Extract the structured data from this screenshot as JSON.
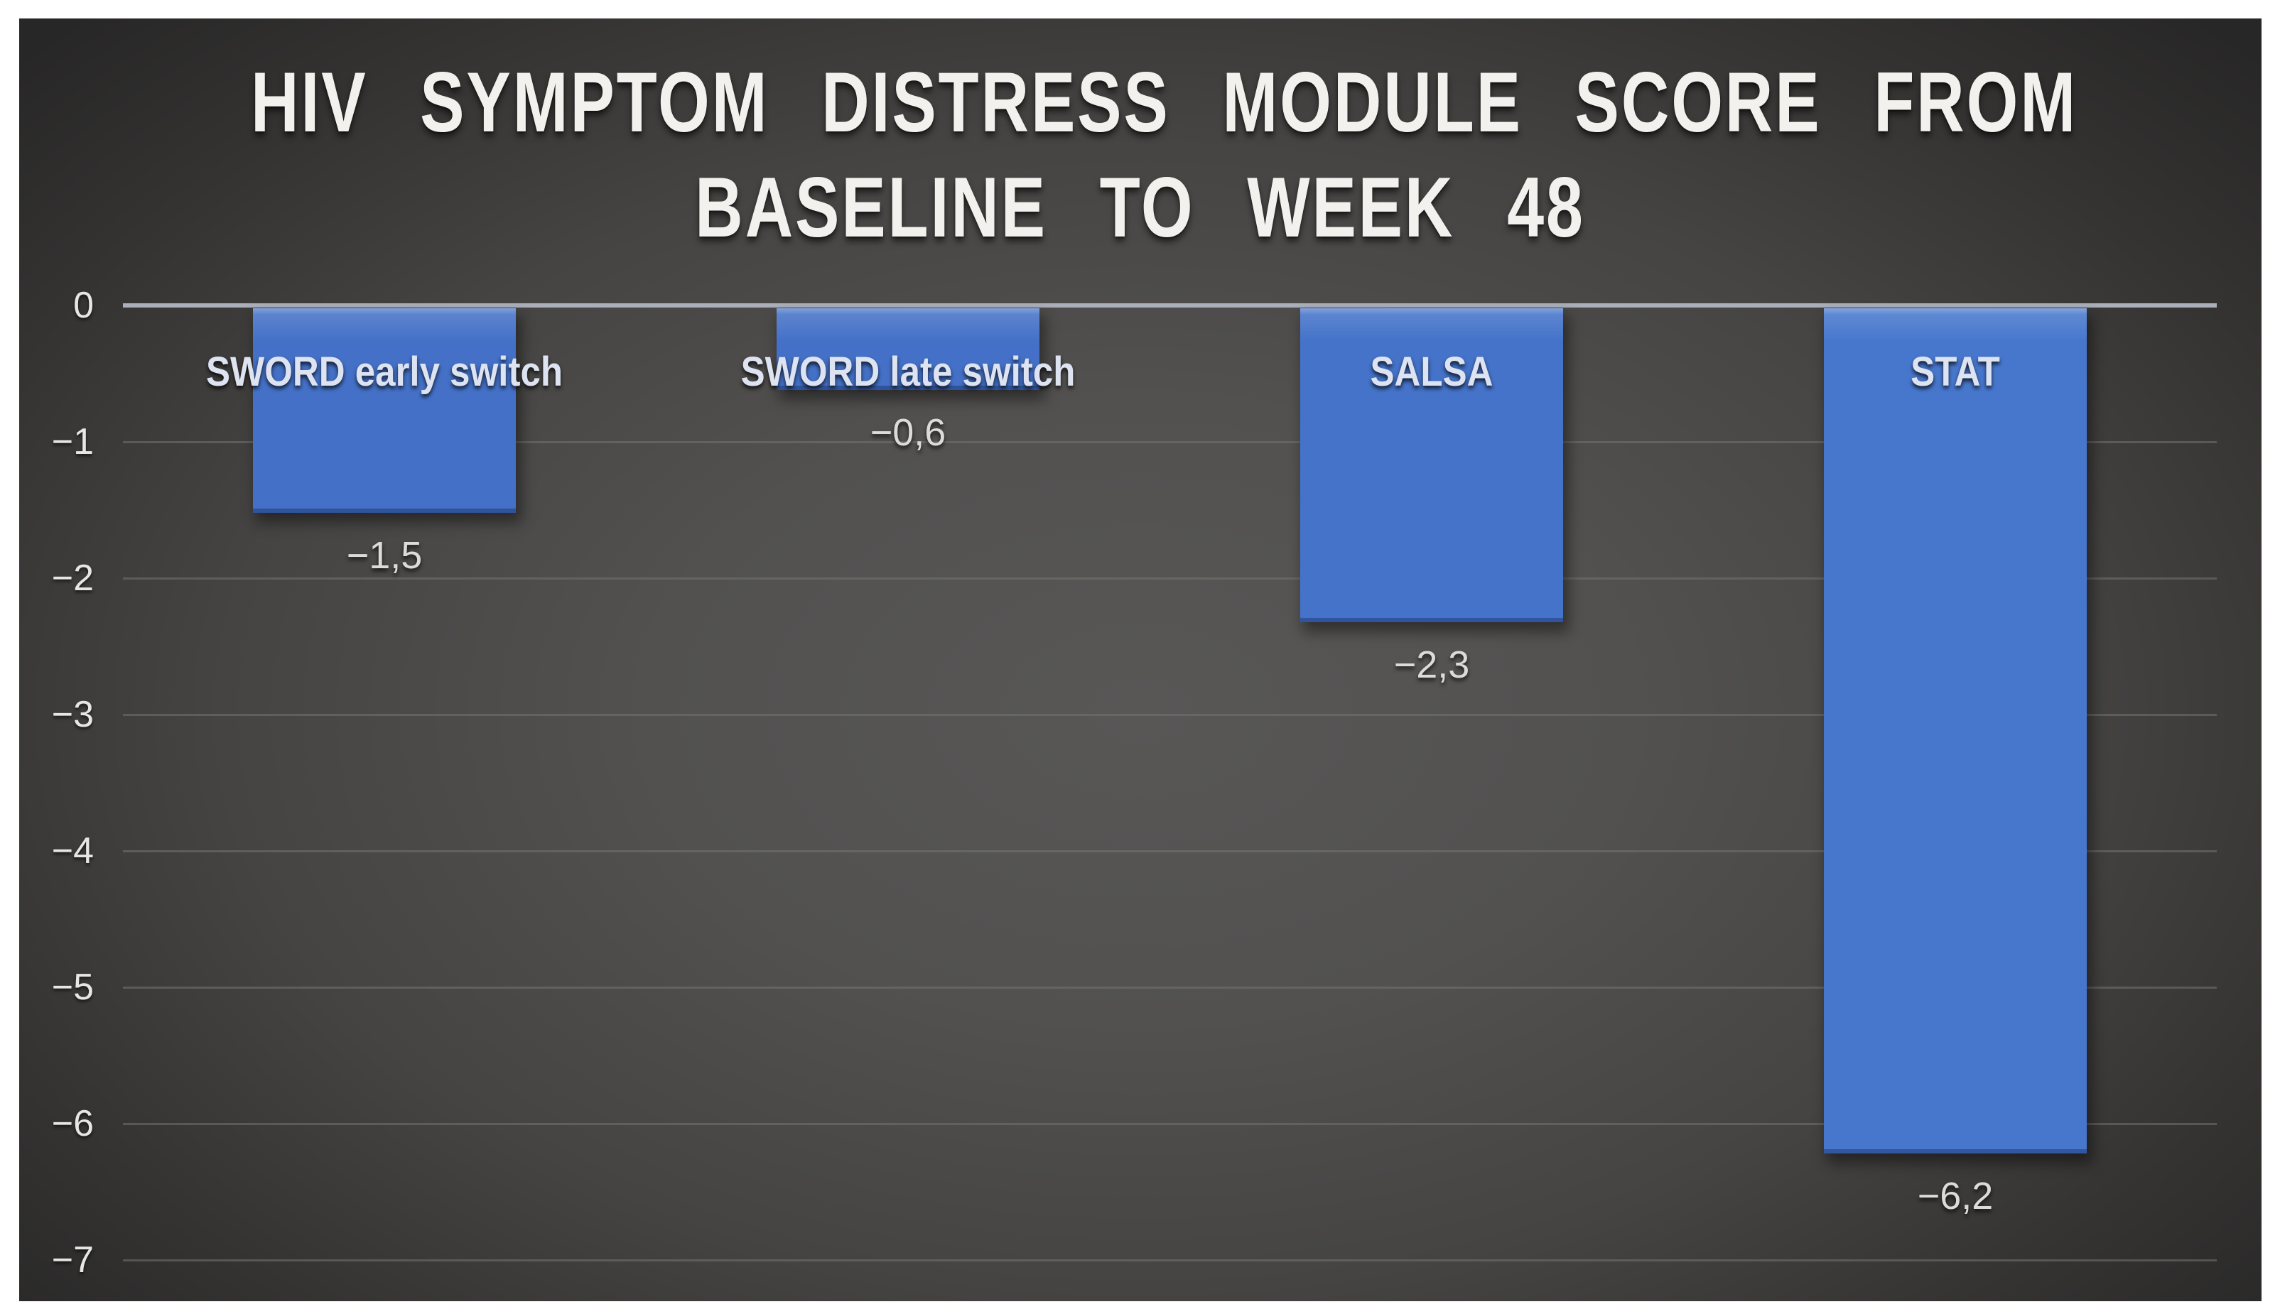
{
  "page": {
    "background": "#ffffff"
  },
  "slide": {
    "bg_center": "#585756",
    "bg_corner": "#272626"
  },
  "chart_data": {
    "type": "bar",
    "title": "HIV SYMPTOM DISTRESS MODULE SCORE FROM BASELINE TO WEEK 48",
    "title_lines": [
      "HIV SYMPTOM DISTRESS MODULE SCORE FROM",
      "BASELINE TO WEEK 48"
    ],
    "categories": [
      "SWORD early switch",
      "SWORD late switch",
      "SALSA",
      "STAT"
    ],
    "values": [
      -1.5,
      -0.6,
      -2.3,
      -6.2
    ],
    "value_labels": [
      "−1,5",
      "−0,6",
      "−2,3",
      "−6,2"
    ],
    "y_tick_values": [
      0,
      -1,
      -2,
      -3,
      -4,
      -5,
      -6,
      -7
    ],
    "y_tick_labels": [
      "0",
      "−1",
      "−2",
      "−3",
      "−4",
      "−5",
      "−6",
      "−7"
    ],
    "ylim": [
      0,
      -7
    ],
    "grid": true,
    "legend": false,
    "value_label_position": "below-bar",
    "category_label_position": "inside-top",
    "bar_colors": [
      "#4471C7",
      "#4471C7",
      "#4473C9",
      "#4777CD"
    ],
    "axis_line_color": "#abafb9",
    "gridline_color": "#757473",
    "title_color": "#f3f1ed",
    "category_label_color": "#dde3f1",
    "value_label_color": "#dddbd8",
    "tick_label_color": "#e6e6e5"
  }
}
